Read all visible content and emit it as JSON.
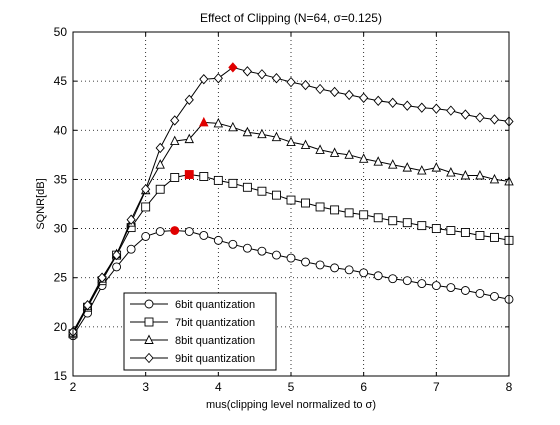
{
  "chart_data": {
    "type": "line",
    "title": "Effect of Clipping (N=64, σ=0.125)",
    "xlabel": "mus(clipping level normalized to σ)",
    "ylabel": "SQNR[dB]",
    "xlim": [
      2,
      8
    ],
    "ylim": [
      15,
      50
    ],
    "xticks": [
      2,
      3,
      4,
      5,
      6,
      7,
      8
    ],
    "yticks": [
      15,
      20,
      25,
      30,
      35,
      40,
      45,
      50
    ],
    "grid": true,
    "legend_position": "bottom-left",
    "x": [
      2.0,
      2.2,
      2.4,
      2.6,
      2.8,
      3.0,
      3.2,
      3.4,
      3.6,
      3.8,
      4.0,
      4.2,
      4.4,
      4.6,
      4.8,
      5.0,
      5.2,
      5.4,
      5.6,
      5.8,
      6.0,
      6.2,
      6.4,
      6.6,
      6.8,
      7.0,
      7.2,
      7.4,
      7.6,
      7.8,
      8.0
    ],
    "series": [
      {
        "name": "6bit quantization",
        "marker": "circle",
        "values": [
          19.1,
          21.4,
          24.2,
          26.1,
          27.9,
          29.2,
          29.7,
          29.8,
          29.7,
          29.3,
          28.8,
          28.4,
          28.0,
          27.7,
          27.3,
          27.0,
          26.6,
          26.3,
          26.0,
          25.8,
          25.5,
          25.2,
          24.9,
          24.7,
          24.4,
          24.2,
          24.0,
          23.7,
          23.4,
          23.1,
          22.8
        ],
        "peak_x": 3.4,
        "peak_y": 29.8
      },
      {
        "name": "7bit quantization",
        "marker": "square",
        "values": [
          19.3,
          22.0,
          24.7,
          27.3,
          30.1,
          32.2,
          34.0,
          35.2,
          35.5,
          35.3,
          34.9,
          34.6,
          34.2,
          33.8,
          33.4,
          32.9,
          32.6,
          32.2,
          31.9,
          31.6,
          31.4,
          31.1,
          30.8,
          30.6,
          30.3,
          30.0,
          29.8,
          29.6,
          29.3,
          29.1,
          28.8
        ],
        "peak_x": 3.6,
        "peak_y": 35.5
      },
      {
        "name": "8bit quantization",
        "marker": "triangle",
        "values": [
          19.4,
          22.1,
          24.9,
          27.4,
          30.6,
          33.9,
          36.5,
          38.9,
          39.1,
          40.8,
          40.7,
          40.3,
          39.8,
          39.6,
          39.3,
          38.8,
          38.5,
          38.0,
          37.7,
          37.5,
          37.1,
          36.8,
          36.5,
          36.2,
          35.9,
          36.2,
          35.7,
          35.4,
          35.4,
          35.0,
          34.8
        ],
        "peak_x": 3.8,
        "peak_y": 40.8
      },
      {
        "name": "9bit quantization",
        "marker": "diamond",
        "values": [
          19.5,
          22.2,
          25.0,
          27.3,
          30.9,
          34.0,
          38.2,
          41.0,
          43.1,
          45.2,
          45.3,
          46.4,
          46.0,
          45.7,
          45.3,
          44.9,
          44.6,
          44.2,
          43.9,
          43.6,
          43.3,
          43.0,
          42.8,
          42.5,
          42.3,
          42.2,
          42.0,
          41.6,
          41.3,
          41.1,
          40.9
        ],
        "peak_x": 4.2,
        "peak_y": 46.4
      }
    ],
    "colors": {
      "line": "#000000",
      "peak_marker": "#e00000",
      "grid": "#000000",
      "background": "#ffffff"
    }
  }
}
